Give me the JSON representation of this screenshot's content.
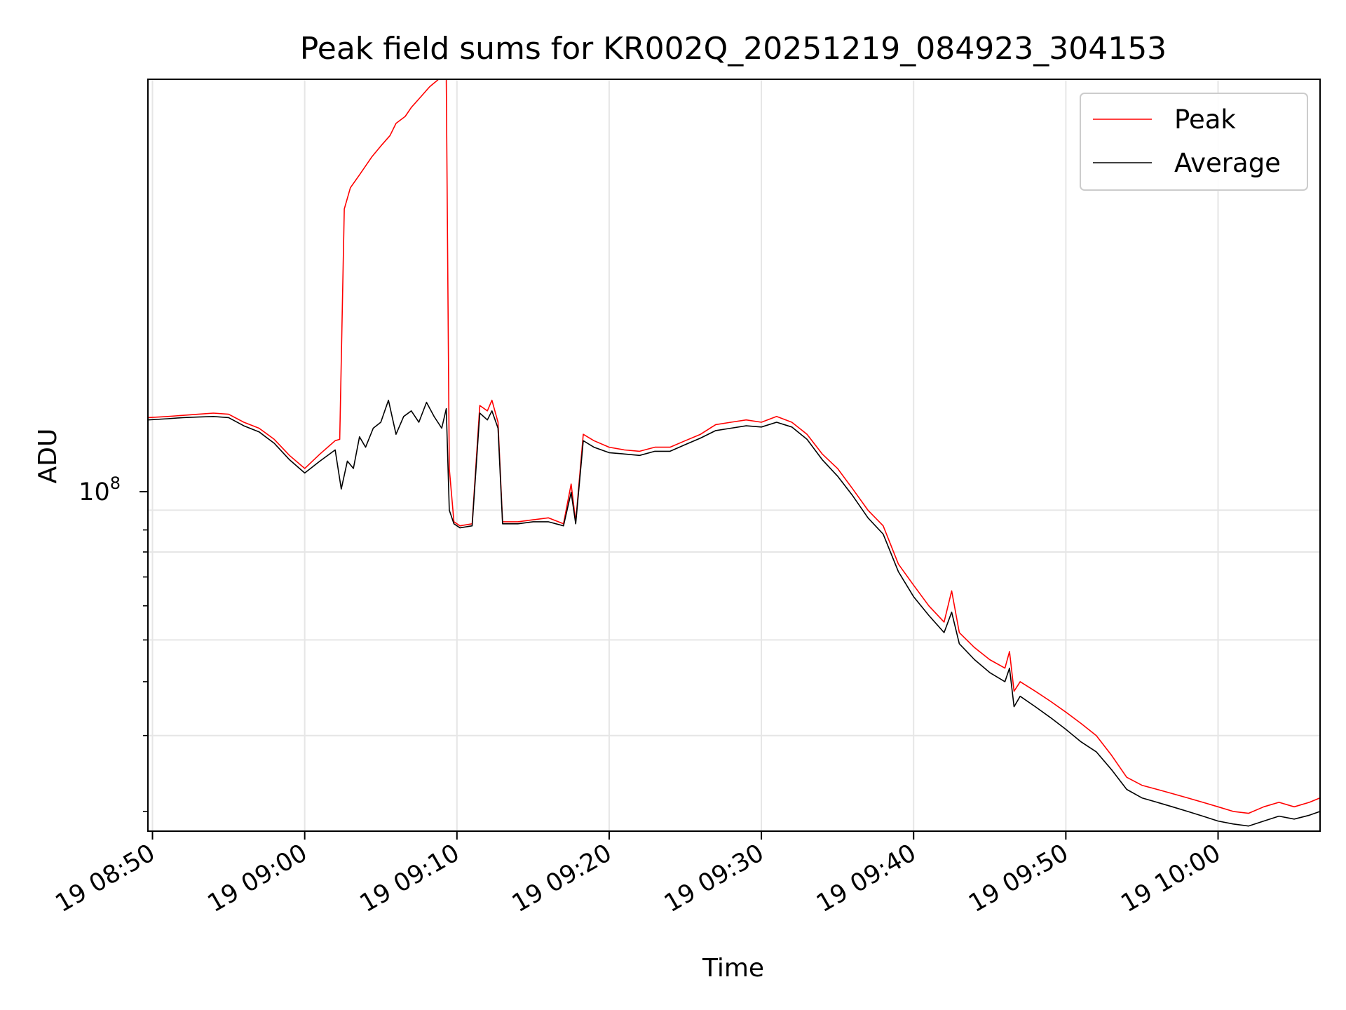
{
  "chart_data": {
    "type": "line",
    "title": "Peak field sums for KR002Q_20251219_084923_304153",
    "xlabel": "Time",
    "ylabel": "ADU",
    "yscale": "log",
    "y_tick_label": {
      "base": "10",
      "exponent": "8"
    },
    "x_range_minutes": [
      -0.3,
      76.7
    ],
    "x_tick_minutes": [
      0,
      10,
      20,
      30,
      40,
      50,
      60,
      70
    ],
    "x_tick_labels": [
      "19 08:50",
      "19 09:00",
      "19 09:10",
      "19 09:20",
      "19 09:30",
      "19 09:40",
      "19 09:50",
      "19 10:00"
    ],
    "ylim": [
      18000000,
      1000000000
    ],
    "y_minor_ticks": [
      90000000,
      80000000,
      70000000,
      60000000,
      50000000,
      40000000,
      30000000,
      20000000
    ],
    "grid": true,
    "legend": {
      "position": "top-right",
      "entries": [
        "Peak",
        "Average"
      ]
    },
    "colors": {
      "peak": "#ff0000",
      "average": "#000000"
    },
    "series": [
      {
        "name": "Peak",
        "points": [
          [
            -0.3,
            164000000
          ],
          [
            1,
            165000000
          ],
          [
            2,
            166000000
          ],
          [
            3,
            167000000
          ],
          [
            4,
            168000000
          ],
          [
            5,
            167000000
          ],
          [
            6,
            160000000
          ],
          [
            7,
            155000000
          ],
          [
            8,
            146000000
          ],
          [
            9,
            134000000
          ],
          [
            10,
            125000000
          ],
          [
            11,
            135000000
          ],
          [
            12,
            145000000
          ],
          [
            12.3,
            146000000
          ],
          [
            12.6,
            500000000
          ],
          [
            13,
            560000000
          ],
          [
            13.6,
            600000000
          ],
          [
            14.4,
            660000000
          ],
          [
            15,
            700000000
          ],
          [
            15.6,
            740000000
          ],
          [
            16,
            790000000
          ],
          [
            16.6,
            820000000
          ],
          [
            17,
            860000000
          ],
          [
            17.5,
            900000000
          ],
          [
            18.2,
            960000000
          ],
          [
            18.5,
            980000000
          ],
          [
            18.8,
            1000000000
          ],
          [
            19.3,
            1000000000
          ],
          [
            19.5,
            125000000
          ],
          [
            19.8,
            94000000
          ],
          [
            20.2,
            92000000
          ],
          [
            21,
            93000000
          ],
          [
            21.5,
            175000000
          ],
          [
            22,
            170000000
          ],
          [
            22.3,
            180000000
          ],
          [
            22.7,
            160000000
          ],
          [
            23,
            94000000
          ],
          [
            24,
            94000000
          ],
          [
            25,
            95000000
          ],
          [
            26,
            96000000
          ],
          [
            27,
            93000000
          ],
          [
            27.5,
            115000000
          ],
          [
            27.8,
            94000000
          ],
          [
            28.3,
            150000000
          ],
          [
            29,
            145000000
          ],
          [
            30,
            140000000
          ],
          [
            31,
            138000000
          ],
          [
            32,
            137000000
          ],
          [
            33,
            140000000
          ],
          [
            34,
            140000000
          ],
          [
            35,
            145000000
          ],
          [
            36,
            150000000
          ],
          [
            37,
            158000000
          ],
          [
            38,
            160000000
          ],
          [
            39,
            162000000
          ],
          [
            40,
            160000000
          ],
          [
            41,
            165000000
          ],
          [
            42,
            160000000
          ],
          [
            43,
            150000000
          ],
          [
            44,
            135000000
          ],
          [
            45,
            125000000
          ],
          [
            46,
            112000000
          ],
          [
            47,
            100000000
          ],
          [
            48,
            92000000
          ],
          [
            49,
            75000000
          ],
          [
            50,
            67000000
          ],
          [
            51,
            60000000
          ],
          [
            52,
            55000000
          ],
          [
            52.5,
            65000000
          ],
          [
            53,
            52000000
          ],
          [
            54,
            48000000
          ],
          [
            55,
            45000000
          ],
          [
            56,
            43000000
          ],
          [
            56.3,
            47000000
          ],
          [
            56.6,
            38000000
          ],
          [
            57,
            40000000
          ],
          [
            58,
            38000000
          ],
          [
            59,
            36000000
          ],
          [
            60,
            34000000
          ],
          [
            61,
            32000000
          ],
          [
            62,
            30000000
          ],
          [
            63,
            27000000
          ],
          [
            64,
            24000000
          ],
          [
            65,
            23000000
          ],
          [
            66,
            22500000
          ],
          [
            67,
            22000000
          ],
          [
            68,
            21500000
          ],
          [
            69,
            21000000
          ],
          [
            70,
            20500000
          ],
          [
            71,
            20000000
          ],
          [
            72,
            19800000
          ],
          [
            73,
            20500000
          ],
          [
            74,
            21000000
          ],
          [
            75,
            20500000
          ],
          [
            76,
            21000000
          ],
          [
            76.7,
            21500000
          ]
        ]
      },
      {
        "name": "Average",
        "points": [
          [
            -0.3,
            162000000
          ],
          [
            1,
            163000000
          ],
          [
            2,
            164000000
          ],
          [
            3,
            164500000
          ],
          [
            4,
            165000000
          ],
          [
            5,
            164000000
          ],
          [
            6,
            157000000
          ],
          [
            7,
            152000000
          ],
          [
            8,
            143000000
          ],
          [
            9,
            131000000
          ],
          [
            10,
            122000000
          ],
          [
            11,
            130000000
          ],
          [
            12,
            138000000
          ],
          [
            12.4,
            112000000
          ],
          [
            12.8,
            130000000
          ],
          [
            13.2,
            125000000
          ],
          [
            13.6,
            148000000
          ],
          [
            14,
            140000000
          ],
          [
            14.5,
            155000000
          ],
          [
            15,
            160000000
          ],
          [
            15.5,
            180000000
          ],
          [
            16,
            150000000
          ],
          [
            16.5,
            165000000
          ],
          [
            17,
            170000000
          ],
          [
            17.5,
            160000000
          ],
          [
            18,
            178000000
          ],
          [
            18.5,
            165000000
          ],
          [
            19,
            155000000
          ],
          [
            19.3,
            172000000
          ],
          [
            19.5,
            100000000
          ],
          [
            19.8,
            93000000
          ],
          [
            20.2,
            91000000
          ],
          [
            21,
            92000000
          ],
          [
            21.5,
            168000000
          ],
          [
            22,
            162000000
          ],
          [
            22.3,
            170000000
          ],
          [
            22.7,
            155000000
          ],
          [
            23,
            93000000
          ],
          [
            24,
            93000000
          ],
          [
            25,
            94000000
          ],
          [
            26,
            94000000
          ],
          [
            27,
            92000000
          ],
          [
            27.5,
            110000000
          ],
          [
            27.8,
            93000000
          ],
          [
            28.3,
            145000000
          ],
          [
            29,
            140000000
          ],
          [
            30,
            136000000
          ],
          [
            31,
            135000000
          ],
          [
            32,
            134000000
          ],
          [
            33,
            137000000
          ],
          [
            34,
            137000000
          ],
          [
            35,
            142000000
          ],
          [
            36,
            147000000
          ],
          [
            37,
            153000000
          ],
          [
            38,
            155000000
          ],
          [
            39,
            157000000
          ],
          [
            40,
            156000000
          ],
          [
            41,
            160000000
          ],
          [
            42,
            156000000
          ],
          [
            43,
            146000000
          ],
          [
            44,
            131000000
          ],
          [
            45,
            120000000
          ],
          [
            46,
            108000000
          ],
          [
            47,
            96000000
          ],
          [
            48,
            88000000
          ],
          [
            49,
            72000000
          ],
          [
            50,
            63000000
          ],
          [
            51,
            57000000
          ],
          [
            52,
            52000000
          ],
          [
            52.5,
            58000000
          ],
          [
            53,
            49000000
          ],
          [
            54,
            45000000
          ],
          [
            55,
            42000000
          ],
          [
            56,
            40000000
          ],
          [
            56.3,
            43000000
          ],
          [
            56.6,
            35000000
          ],
          [
            57,
            37000000
          ],
          [
            58,
            35000000
          ],
          [
            59,
            33000000
          ],
          [
            60,
            31000000
          ],
          [
            61,
            29000000
          ],
          [
            62,
            27500000
          ],
          [
            63,
            25000000
          ],
          [
            64,
            22500000
          ],
          [
            65,
            21500000
          ],
          [
            66,
            21000000
          ],
          [
            67,
            20500000
          ],
          [
            68,
            20000000
          ],
          [
            69,
            19500000
          ],
          [
            70,
            19000000
          ],
          [
            71,
            18700000
          ],
          [
            72,
            18500000
          ],
          [
            73,
            19000000
          ],
          [
            74,
            19500000
          ],
          [
            75,
            19200000
          ],
          [
            76,
            19600000
          ],
          [
            76.7,
            20000000
          ]
        ]
      }
    ]
  }
}
